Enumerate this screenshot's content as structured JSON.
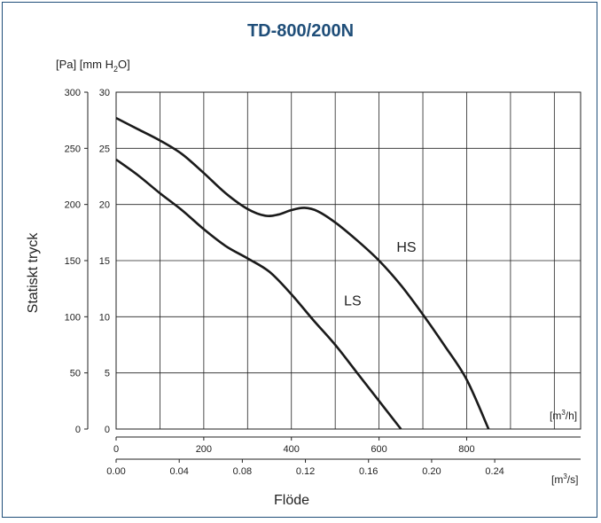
{
  "chart_data": {
    "type": "line",
    "title": "TD-800/200N",
    "unit_pa_label": "[Pa] [mm H",
    "unit_mm_sub": "2",
    "unit_mm_end": "O]",
    "ylabel": "Statiskt tryck",
    "xlabel": "Flöde",
    "x_unit_m3h": "[m",
    "x_unit_m3h_sup": "3",
    "x_unit_m3h_end": "/h]",
    "x_unit_m3s": "[m",
    "x_unit_m3s_sup": "3",
    "x_unit_m3s_end": "/s]",
    "xlim_m3h": [
      0,
      1060
    ],
    "ylim_pa": [
      0,
      300
    ],
    "x_ticks_m3h": [
      "0",
      "200",
      "400",
      "600",
      "800"
    ],
    "x_tick_values_m3h": [
      0,
      200,
      400,
      600,
      800
    ],
    "x_ticks_m3s": [
      "0.00",
      "0.04",
      "0.08",
      "0.12",
      "0.16",
      "0.20",
      "0.24"
    ],
    "x_tick_values_m3s": [
      0.0,
      0.04,
      0.08,
      0.12,
      0.16,
      0.2,
      0.24
    ],
    "y_ticks_pa": [
      "0",
      "50",
      "100",
      "150",
      "200",
      "250",
      "300"
    ],
    "y_tick_values_pa": [
      0,
      50,
      100,
      150,
      200,
      250,
      300
    ],
    "y_ticks_mm": [
      "0",
      "5",
      "10",
      "15",
      "20",
      "25",
      "30"
    ],
    "y_tick_values_mm": [
      0,
      5,
      10,
      15,
      20,
      25,
      30
    ],
    "grid_x_m3h": [
      0,
      100,
      200,
      300,
      400,
      500,
      600,
      700,
      800,
      900,
      1000
    ],
    "grid": true,
    "series": [
      {
        "name": "HS",
        "x": [
          0,
          50,
          100,
          150,
          200,
          250,
          300,
          340,
          370,
          400,
          430,
          460,
          500,
          550,
          600,
          650,
          700,
          750,
          800,
          850
        ],
        "y": [
          277,
          267,
          257,
          245,
          228,
          210,
          196,
          190,
          191,
          195,
          197,
          194,
          184,
          168,
          150,
          128,
          102,
          74,
          44,
          0
        ]
      },
      {
        "name": "LS",
        "x": [
          0,
          50,
          100,
          150,
          200,
          250,
          300,
          350,
          400,
          450,
          500,
          550,
          600,
          650,
          700
        ],
        "y": [
          240,
          226,
          210,
          195,
          178,
          163,
          152,
          140,
          120,
          97,
          75,
          50,
          25,
          0,
          0
        ]
      }
    ],
    "label_positions": [
      {
        "name": "HS",
        "x": 640,
        "y": 158
      },
      {
        "name": "LS",
        "x": 520,
        "y": 110
      }
    ]
  }
}
